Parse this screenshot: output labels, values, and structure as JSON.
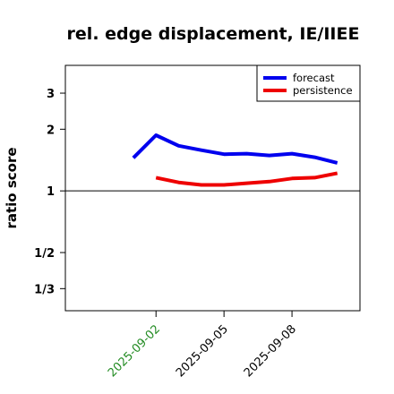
{
  "chart_data": {
    "type": "line",
    "title": "rel. edge displacement, IE/IIEE",
    "xlabel": "",
    "ylabel": "ratio score",
    "y_scale": "log",
    "ylim": [
      0.26,
      4.1
    ],
    "reference_line": 1,
    "yticks": [
      {
        "value": 3,
        "label": "3"
      },
      {
        "value": 2,
        "label": "2"
      },
      {
        "value": 1,
        "label": "1"
      },
      {
        "value": 0.5,
        "label": "1/2"
      },
      {
        "value": 0.3333,
        "label": "1/3"
      }
    ],
    "xlim": [
      "2025-08-29",
      "2025-09-11"
    ],
    "xticks": [
      {
        "value": "2025-09-02",
        "label": "2025-09-02",
        "color": "#228b22"
      },
      {
        "value": "2025-09-05",
        "label": "2025-09-05",
        "color": "#000000"
      },
      {
        "value": "2025-09-08",
        "label": "2025-09-08",
        "color": "#000000"
      }
    ],
    "legend_position": "top-right",
    "series": [
      {
        "name": "forecast",
        "color": "#0000ee",
        "x": [
          "2025-09-01",
          "2025-09-02",
          "2025-09-03",
          "2025-09-04",
          "2025-09-05",
          "2025-09-06",
          "2025-09-07",
          "2025-09-08",
          "2025-09-09",
          "2025-09-10"
        ],
        "y": [
          1.45,
          1.87,
          1.66,
          1.58,
          1.51,
          1.52,
          1.49,
          1.52,
          1.46,
          1.37
        ]
      },
      {
        "name": "persistence",
        "color": "#ee0000",
        "x": [
          "2025-09-02",
          "2025-09-03",
          "2025-09-04",
          "2025-09-05",
          "2025-09-06",
          "2025-09-07",
          "2025-09-08",
          "2025-09-09",
          "2025-09-10"
        ],
        "y": [
          1.16,
          1.1,
          1.07,
          1.07,
          1.09,
          1.11,
          1.15,
          1.16,
          1.22
        ]
      }
    ]
  }
}
